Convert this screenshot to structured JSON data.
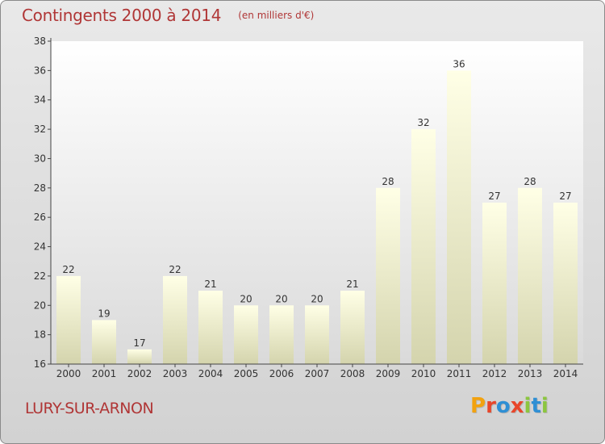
{
  "header": {
    "title": "Contingents 2000 à 2014",
    "subtitle": "(en milliers d'€)"
  },
  "footer": {
    "commune": "LURY-SUR-ARNON",
    "logo_text": "Proxiti",
    "logo_colors": [
      "#f2a20f",
      "#e8462a",
      "#2f8fd4",
      "#e8462a",
      "#8cc63f",
      "#2f8fd4",
      "#8cc63f"
    ]
  },
  "chart_data": {
    "type": "bar",
    "categories": [
      "2000",
      "2001",
      "2002",
      "2003",
      "2004",
      "2005",
      "2006",
      "2007",
      "2008",
      "2009",
      "2010",
      "2011",
      "2012",
      "2013",
      "2014"
    ],
    "values": [
      22,
      19,
      17,
      22,
      21,
      20,
      20,
      20,
      21,
      28,
      32,
      36,
      27,
      28,
      27
    ],
    "data_labels": [
      "22",
      "19",
      "17",
      "22",
      "21",
      "20",
      "20",
      "20",
      "21",
      "28",
      "32",
      "36",
      "27",
      "28",
      "27"
    ],
    "title": "Contingents 2000 à 2014",
    "subtitle": "(en milliers d'€)",
    "xlabel": "",
    "ylabel": "",
    "ylim": [
      16,
      38
    ],
    "yticks": [
      16,
      18,
      20,
      22,
      24,
      26,
      28,
      30,
      32,
      34,
      36,
      38
    ],
    "grid": false,
    "legend": "none",
    "colors": {
      "bar_top": "#ffffe4",
      "bar_bottom": "#d6d6b0",
      "axis": "#333333",
      "label_text": "#333333",
      "plot_background_top": "#ffffff",
      "plot_background_bottom": "#d9d9d9"
    }
  }
}
